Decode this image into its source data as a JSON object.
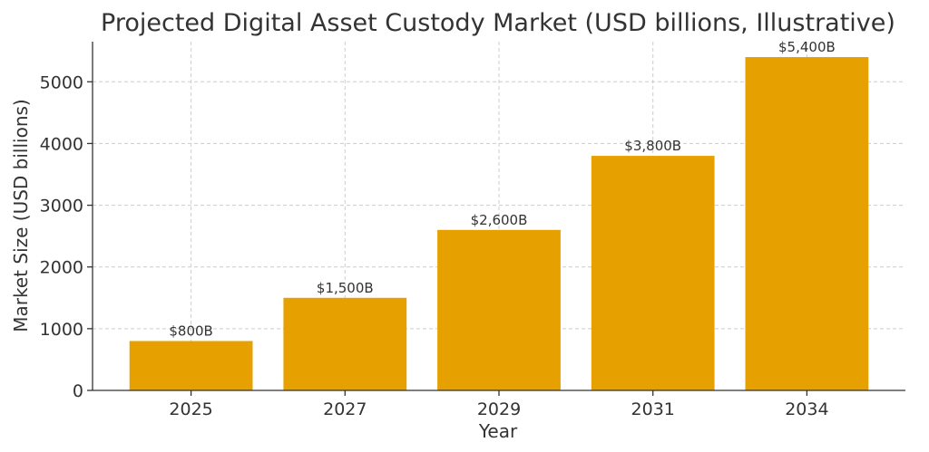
{
  "chart_data": {
    "type": "bar",
    "title": "Projected Digital Asset Custody Market (USD billions, Illustrative)",
    "xlabel": "Year",
    "ylabel": "Market Size (USD billions)",
    "categories": [
      "2025",
      "2027",
      "2029",
      "2031",
      "2034"
    ],
    "values": [
      800,
      1500,
      2600,
      3800,
      5400
    ],
    "data_labels": [
      "$800B",
      "$1,500B",
      "$2,600B",
      "$3,800B",
      "$5,400B"
    ],
    "ylim": [
      0,
      5650
    ],
    "yticks": [
      0,
      1000,
      2000,
      3000,
      4000,
      5000
    ],
    "grid": true,
    "bar_color": "#E6A000"
  }
}
